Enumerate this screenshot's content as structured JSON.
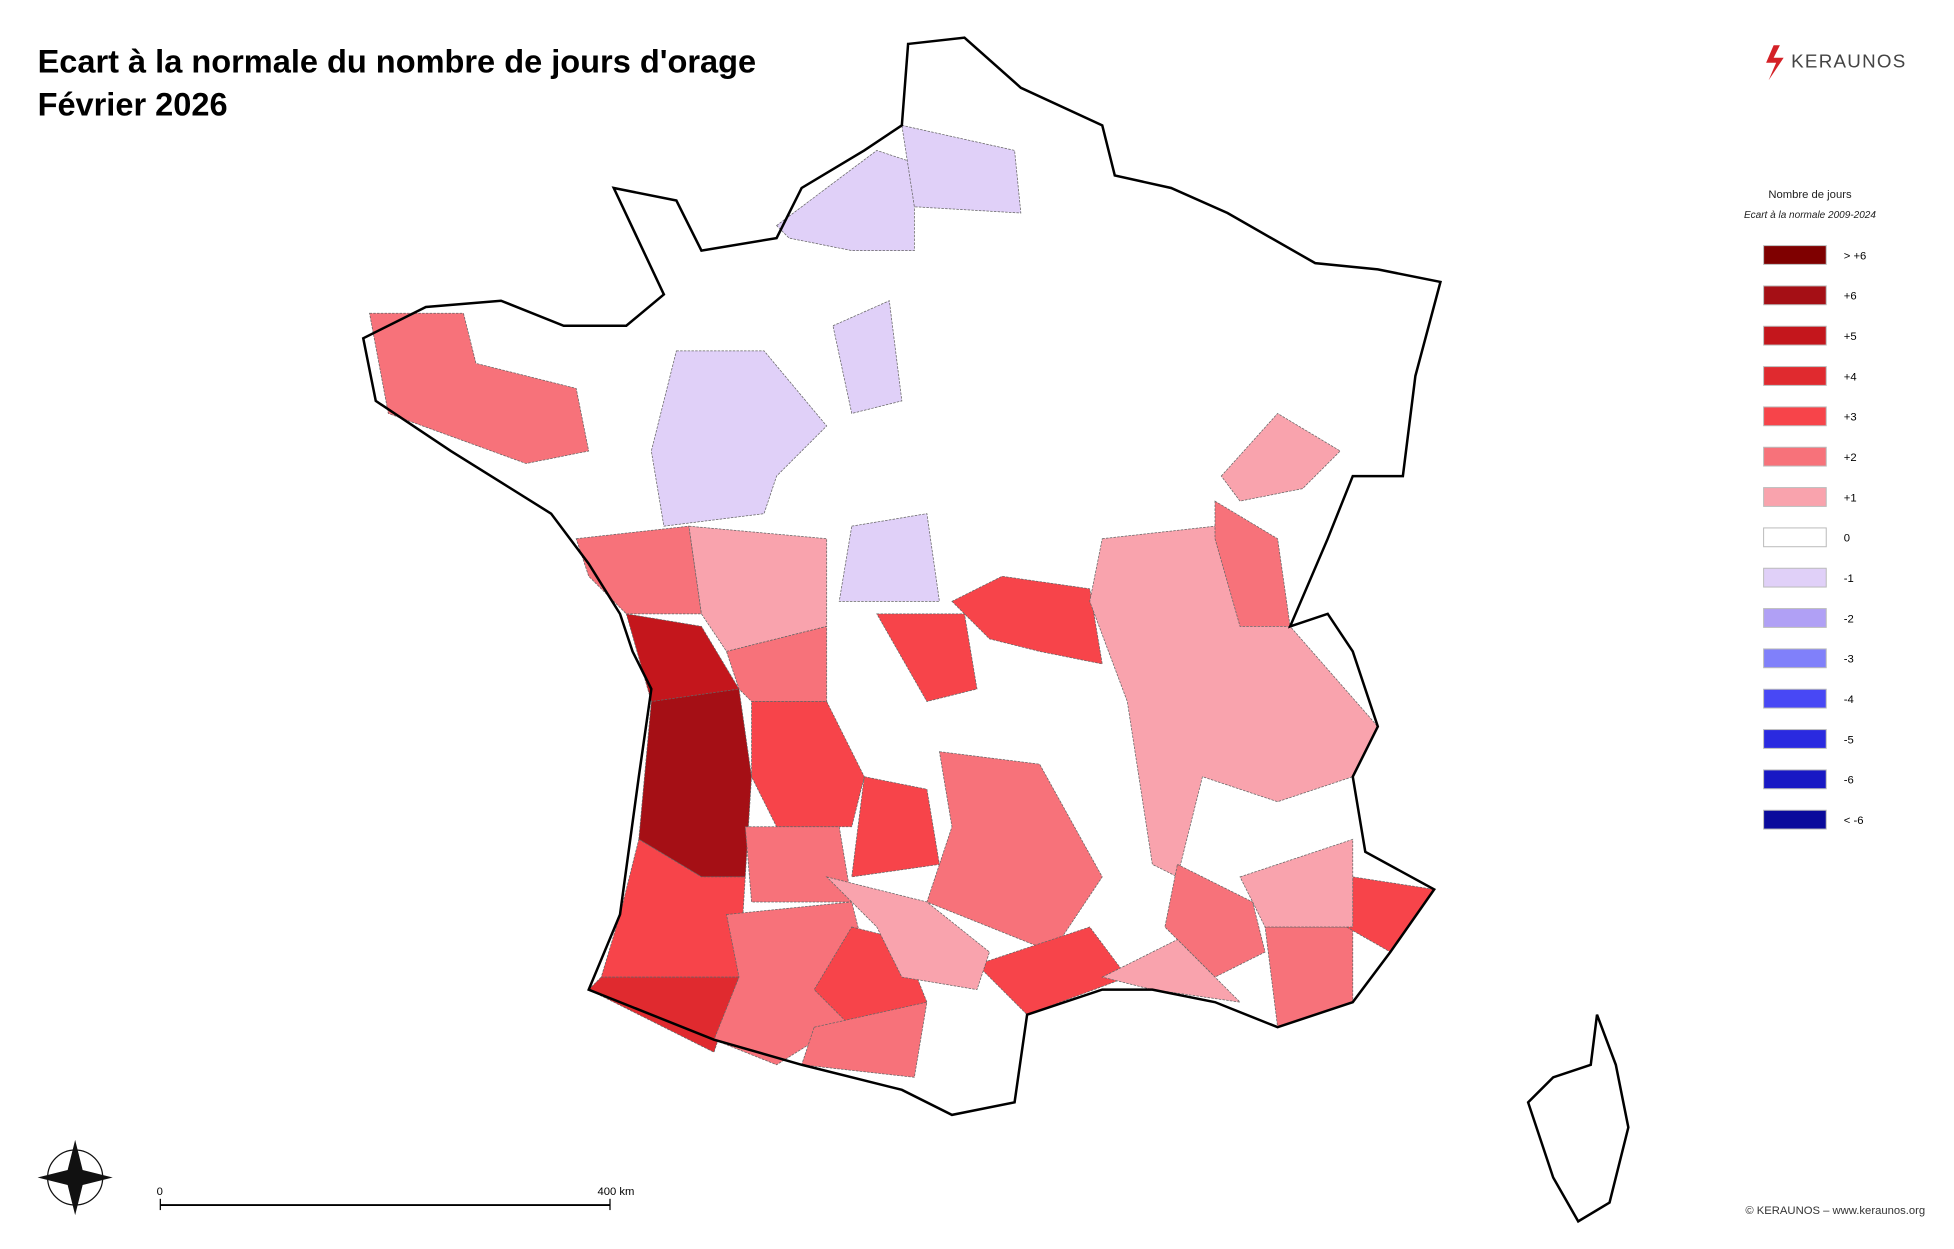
{
  "header": {
    "title": "Ecart à la normale du nombre de jours d'orage",
    "subtitle": "Février 2026",
    "logo": "KERAUNOS"
  },
  "legend": {
    "title": "Nombre de jours",
    "subtitle": "Ecart à la normale 2009-2024",
    "items": [
      {
        "label": "> +6",
        "color": "#7f0000"
      },
      {
        "label": "+6",
        "color": "#a50f15"
      },
      {
        "label": "+5",
        "color": "#c4161c"
      },
      {
        "label": "+4",
        "color": "#e02a2f"
      },
      {
        "label": "+3",
        "color": "#f7444a"
      },
      {
        "label": "+2",
        "color": "#f7727a"
      },
      {
        "label": "+1",
        "color": "#f9a3ad"
      },
      {
        "label": "0",
        "color": "#ffffff"
      },
      {
        "label": "-1",
        "color": "#e0d0f8"
      },
      {
        "label": "-2",
        "color": "#b0a0f5"
      },
      {
        "label": "-3",
        "color": "#8080fa"
      },
      {
        "label": "-4",
        "color": "#4848f5"
      },
      {
        "label": "-5",
        "color": "#2a2ae0"
      },
      {
        "label": "-6",
        "color": "#1818c4"
      },
      {
        "label": "< -6",
        "color": "#0a0a9c"
      }
    ]
  },
  "scale_bar": {
    "start": "0",
    "end": "400 km"
  },
  "footer": {
    "copyright": "© KERAUNOS – www.keraunos.org"
  }
}
